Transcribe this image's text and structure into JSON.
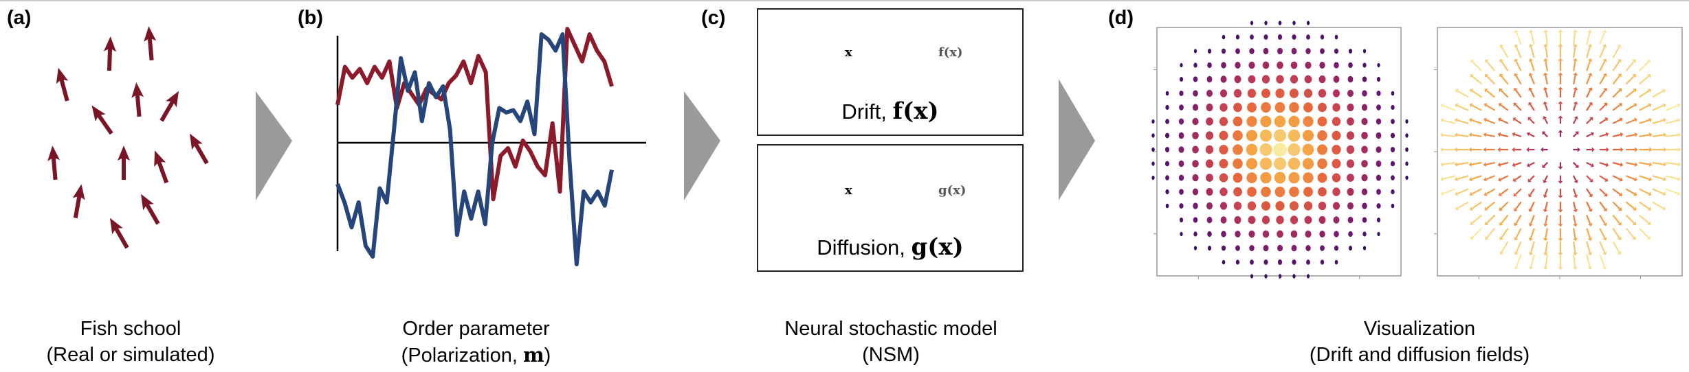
{
  "panels": {
    "a": {
      "label": "(a)",
      "caption_line1": "Fish school",
      "caption_line2": "(Real or simulated)"
    },
    "b": {
      "label": "(b)",
      "caption_line1": "Order parameter",
      "caption_line2_prefix": "(Polarization, ",
      "caption_symbol": "m",
      "caption_line2_suffix": ")"
    },
    "c": {
      "label": "(c)",
      "drift_prefix": "Drift, ",
      "drift_symbol": "f(x)",
      "diffusion_prefix": "Diffusion, ",
      "diffusion_symbol": "g(x)",
      "input_label": "x",
      "drift_output": "f(x)",
      "diffusion_output": "g(x)",
      "caption_line1": "Neural stochastic model",
      "caption_line2": "(NSM)"
    },
    "d": {
      "label": "(d)",
      "caption_line1": "Visualization",
      "caption_line2": "(Drift and diffusion fields)"
    }
  },
  "colors": {
    "fish": "#7a1525",
    "series_red": "#8b1a2b",
    "series_blue": "#26457a",
    "arrow_gray": "#9a9a9a",
    "node": "#b51f2e"
  },
  "chart_data": {
    "type": "line",
    "title": "",
    "xlabel": "",
    "ylabel": "",
    "series": [
      {
        "values": [
          0.35,
          0.7,
          0.6,
          0.68,
          0.55,
          0.7,
          0.6,
          0.75,
          0.32,
          0.55,
          0.45,
          0.35,
          0.5,
          0.45,
          0.4,
          0.55,
          0.62,
          0.75,
          0.55,
          0.8,
          0.65,
          -0.52,
          -0.12,
          -0.05,
          -0.22,
          0.02,
          -0.08,
          -0.22,
          -0.3,
          0.18,
          -0.45,
          1.05,
          0.9,
          0.75,
          1.0,
          0.85,
          0.75,
          0.52
        ]
      },
      {
        "values": [
          -0.38,
          -0.55,
          -0.78,
          -0.55,
          -0.95,
          -1.05,
          -0.42,
          -0.55,
          0.1,
          0.78,
          0.48,
          0.65,
          0.2,
          0.55,
          0.42,
          0.52,
          0.12,
          -0.85,
          -0.45,
          -0.7,
          -0.45,
          -0.75,
          0.0,
          0.32,
          0.28,
          0.3,
          0.2,
          0.38,
          0.08,
          1.0,
          0.95,
          0.85,
          1.0,
          -0.18,
          -1.12,
          -0.45,
          -0.55,
          -0.45,
          -0.58,
          -0.25
        ]
      }
    ]
  }
}
